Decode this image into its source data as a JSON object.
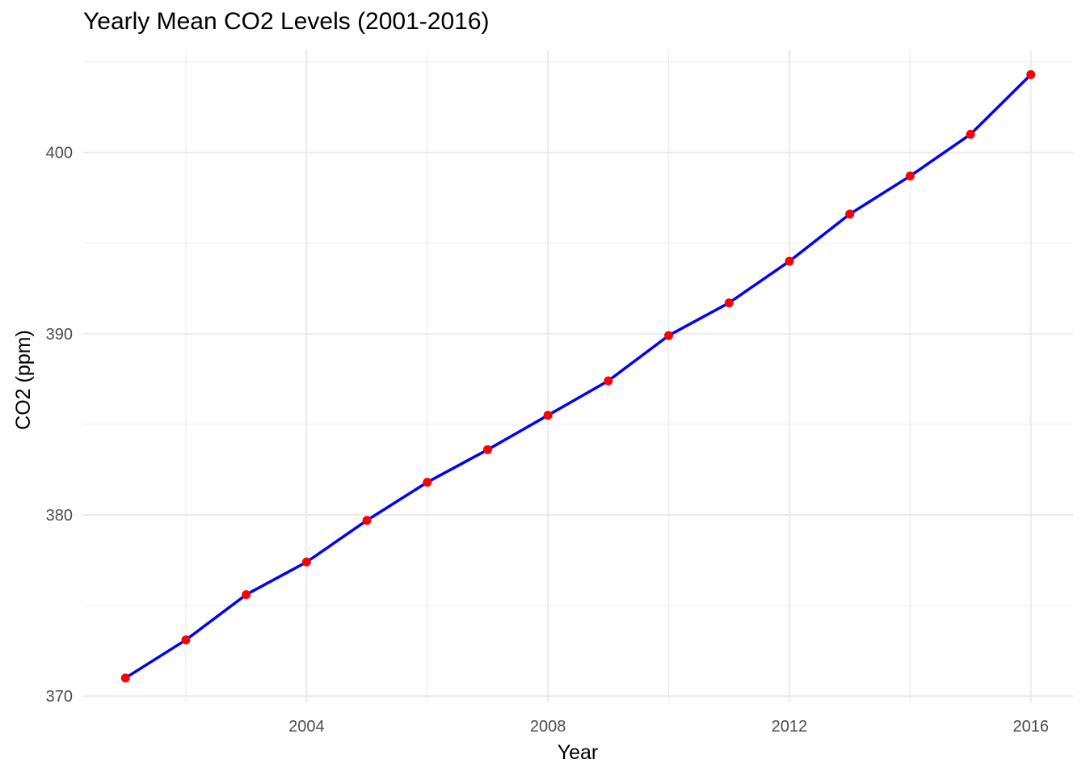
{
  "chart_data": {
    "type": "line",
    "title": "Yearly Mean CO2 Levels (2001-2016)",
    "xlabel": "Year",
    "ylabel": "CO2 (ppm)",
    "x": [
      2001,
      2002,
      2003,
      2004,
      2005,
      2006,
      2007,
      2008,
      2009,
      2010,
      2011,
      2012,
      2013,
      2014,
      2015,
      2016
    ],
    "series": [
      {
        "values": [
          371.0,
          373.1,
          375.6,
          377.4,
          379.7,
          381.8,
          383.6,
          385.5,
          387.4,
          389.9,
          391.7,
          394.0,
          396.6,
          398.7,
          401.0,
          404.3
        ]
      }
    ],
    "xticks": [
      2004,
      2008,
      2012,
      2016
    ],
    "yticks": [
      370,
      380,
      390,
      400
    ],
    "xlim": [
      2000.3,
      2016.7
    ],
    "ylim": [
      369.65,
      405.65
    ],
    "grid": true,
    "colors": {
      "line": "#0000ff",
      "points": "#ff0000",
      "grid": "#ebebeb"
    }
  }
}
